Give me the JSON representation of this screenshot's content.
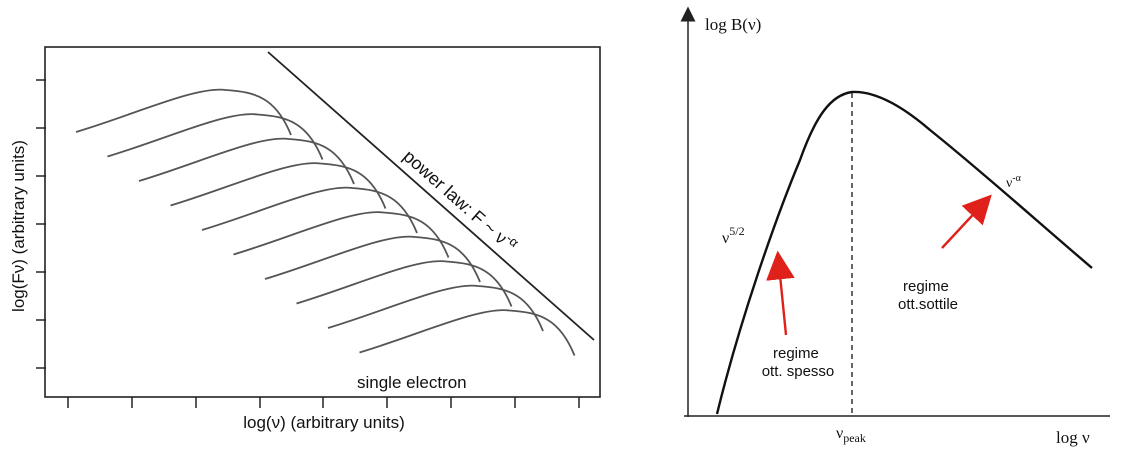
{
  "left_panel": {
    "y_axis_label": "log(Fν) (arbitrary units)",
    "x_axis_label": "log(ν) (arbitrary units)",
    "power_law_label": "power law: F ~ ν",
    "power_law_exponent": "-α",
    "single_electron_label": "single electron",
    "curve_count": 10,
    "colors": {
      "curves": "#555555",
      "frame": "#222222"
    }
  },
  "right_panel": {
    "y_axis_label": "log B(ν)",
    "x_axis_label": "log ν",
    "peak_label_main": "ν",
    "peak_label_sub": "peak",
    "slope_thick_main": "ν",
    "slope_thick_exp": "5/2",
    "slope_thin_main": "ν",
    "slope_thin_exp": "-α",
    "regime_thick_line1": "regime",
    "regime_thick_line2": "ott. spesso",
    "regime_thin_line1": "regime",
    "regime_thin_line2": "ott.sottile",
    "colors": {
      "curve": "#111111",
      "arrow": "#e0201b",
      "axis": "#222222"
    }
  }
}
